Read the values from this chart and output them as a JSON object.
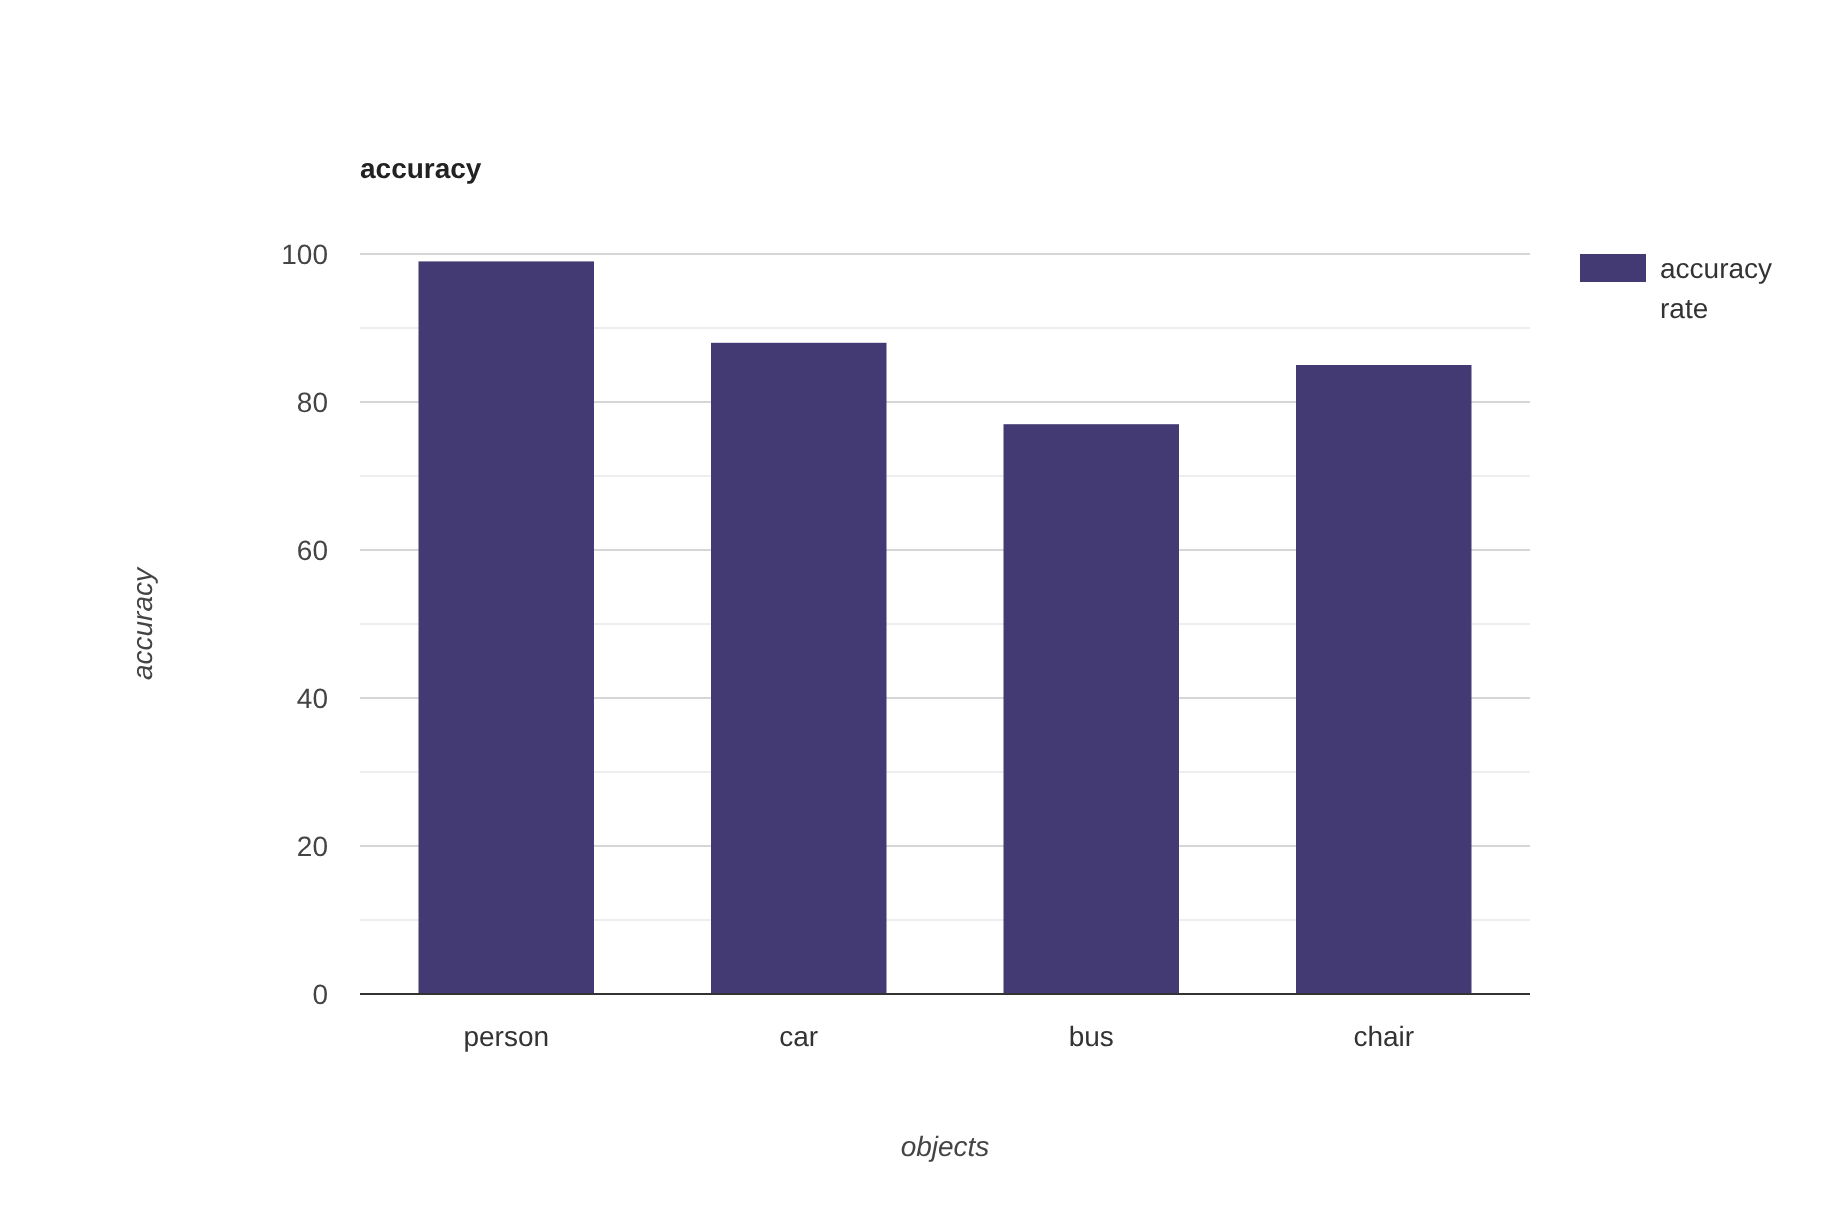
{
  "chart_data": {
    "type": "bar",
    "title": "accuracy",
    "xlabel": "objects",
    "ylabel": "accuracy",
    "categories": [
      "person",
      "car",
      "bus",
      "chair"
    ],
    "series": [
      {
        "name": "accuracy rate",
        "color": "#443a73",
        "values": [
          99,
          88,
          77,
          85
        ]
      }
    ],
    "ylim": [
      0,
      100
    ],
    "yticks": [
      0,
      {
        "value": 10,
        "label": null
      },
      20,
      {
        "value": 30,
        "label": null
      },
      40,
      {
        "value": 50,
        "label": null
      },
      60,
      {
        "value": 70,
        "label": null
      },
      80,
      {
        "value": 90,
        "label": null
      },
      100
    ],
    "grid": "y",
    "legend": "right"
  }
}
